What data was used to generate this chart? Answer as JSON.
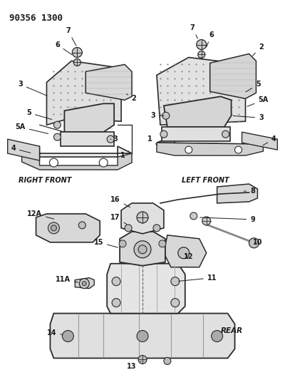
{
  "title": "90356 1300",
  "background_color": "#ffffff",
  "fig_width": 4.0,
  "fig_height": 5.33,
  "right_front_label": "RIGHT FRONT",
  "left_front_label": "LEFT FRONT",
  "rear_label": "REAR",
  "line_color": "#2a2a2a",
  "text_color": "#1a1a1a"
}
